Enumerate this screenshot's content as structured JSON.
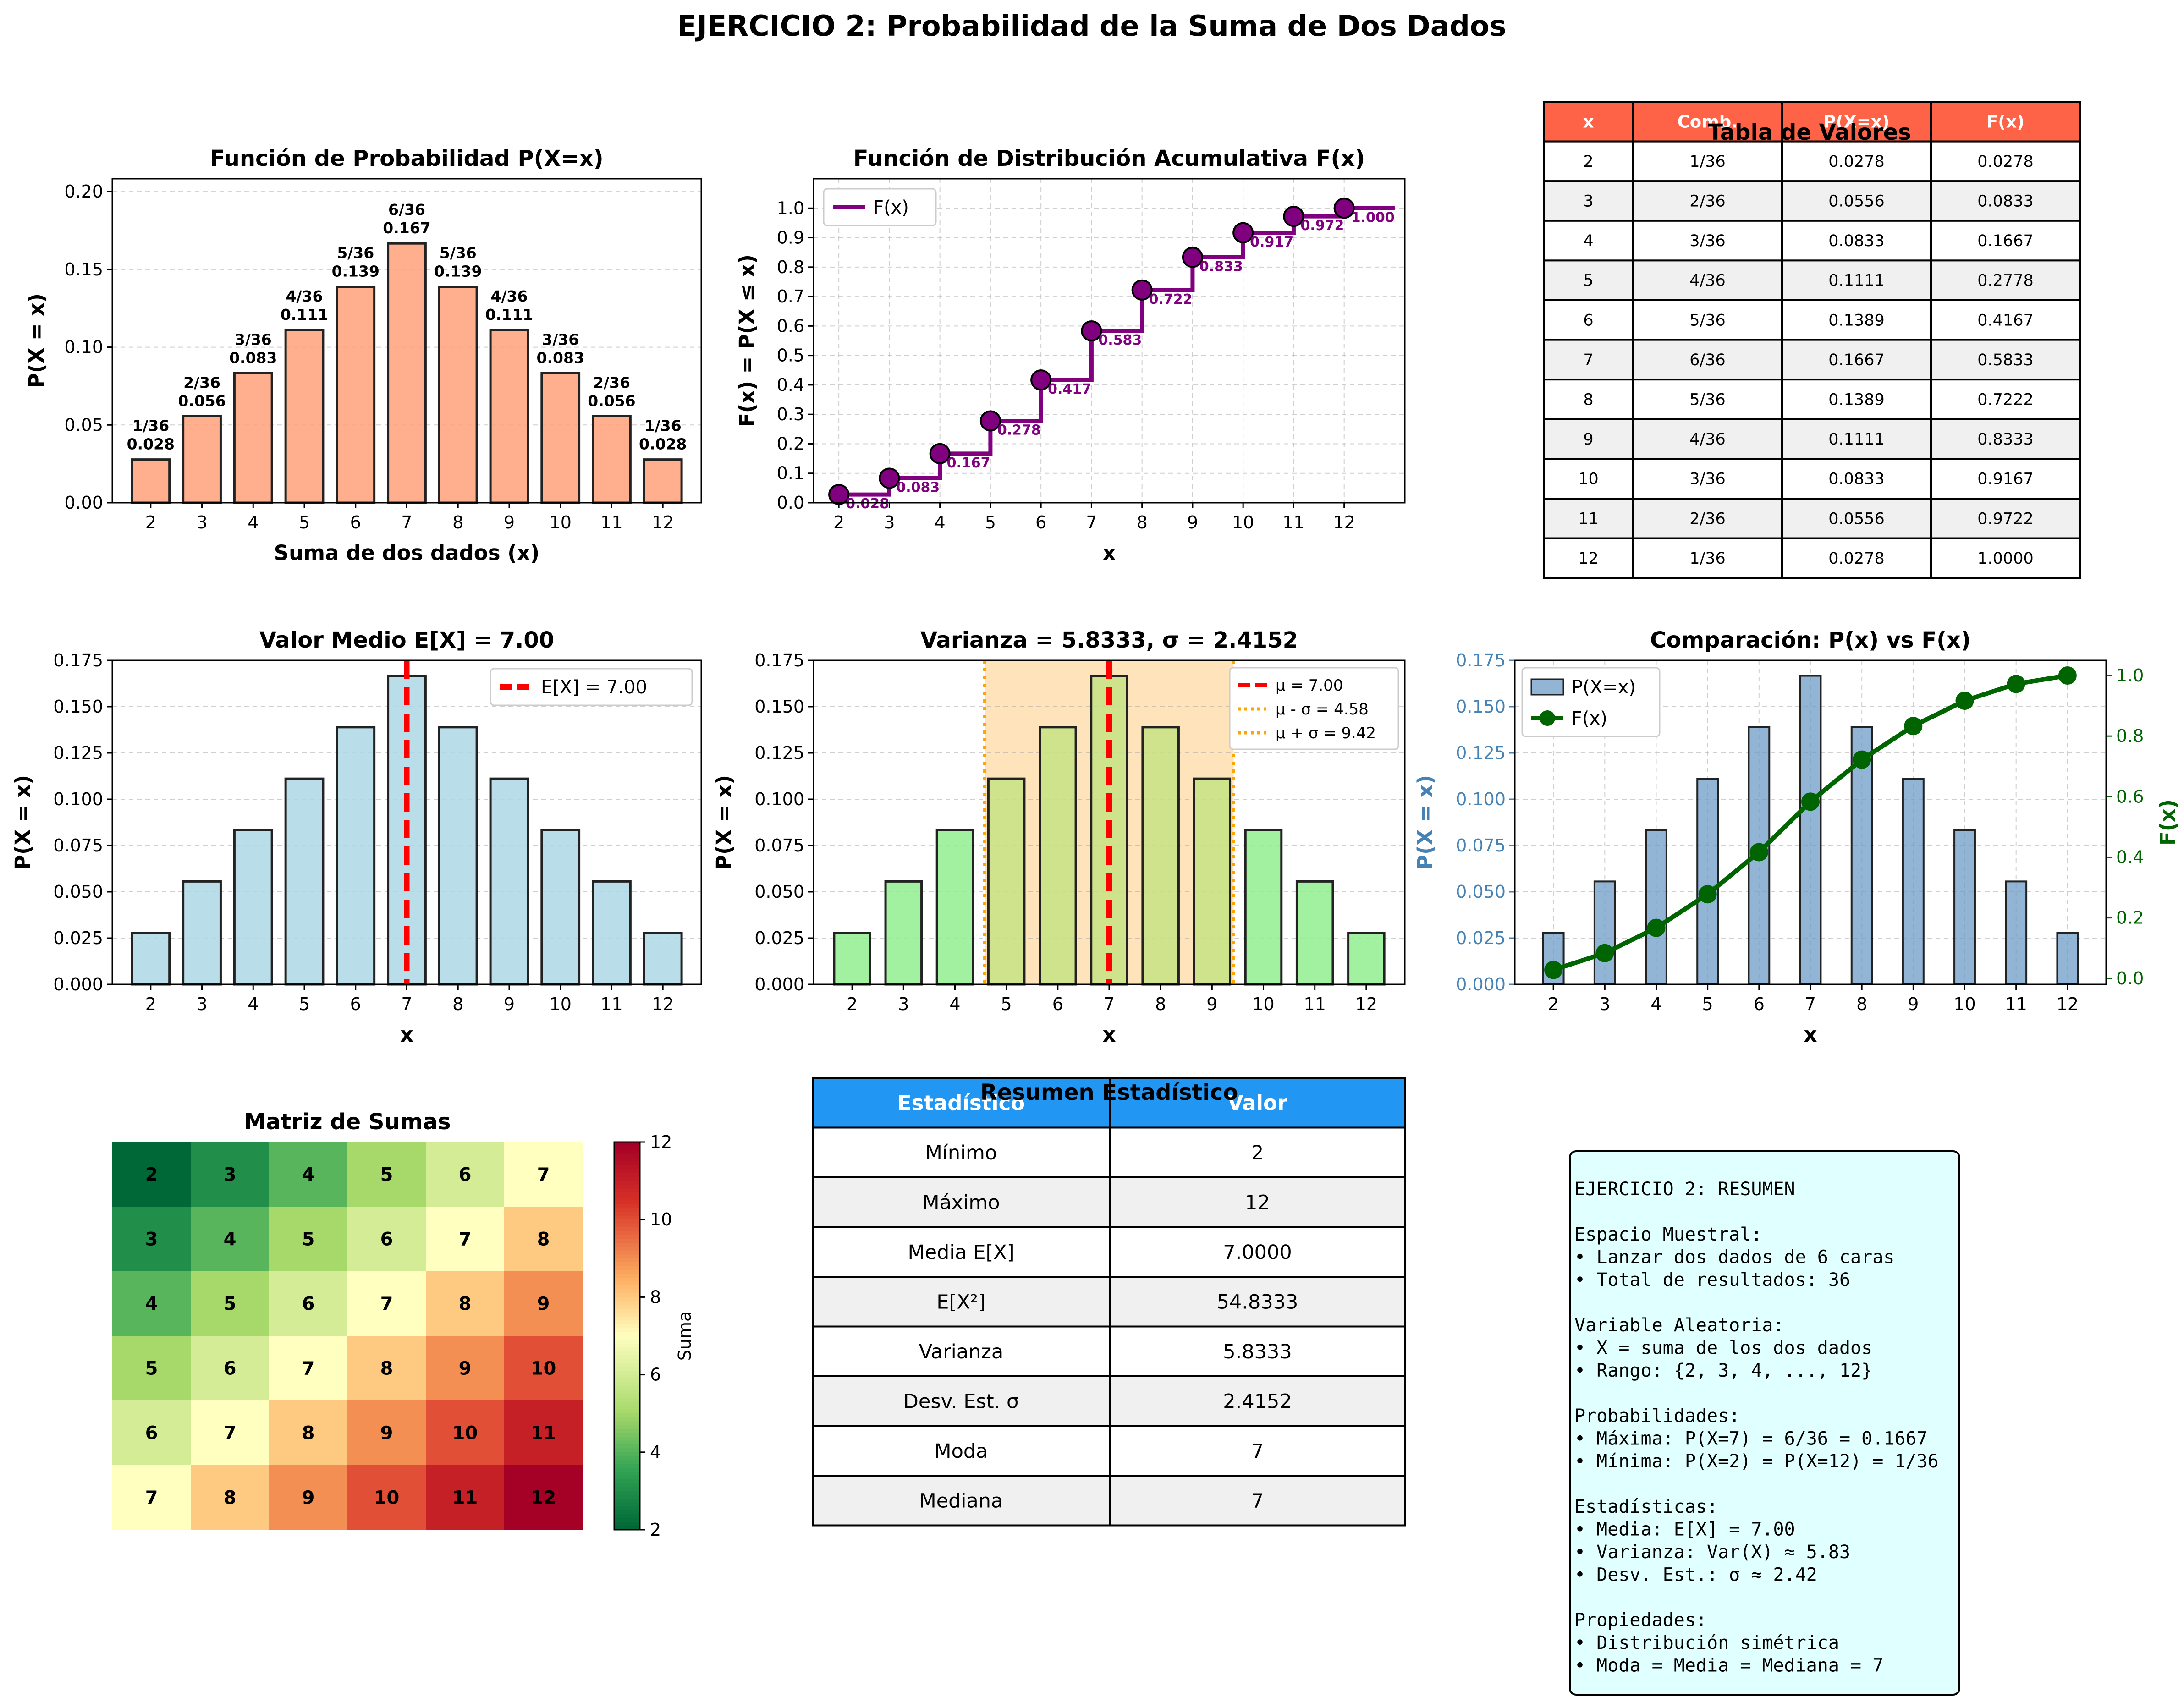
{
  "suptitle": "EJERCICIO 2: Probabilidad de la Suma de Dos Dados",
  "colors": {
    "pmf_bar": "#FFA07A",
    "cdf_line": "#800080",
    "mean_bar": "#ADD8E6",
    "var_bar": "#90EE90",
    "var_band": "#FFE0B2",
    "mean_line": "#FF0000",
    "sigma_line": "#FFA500",
    "cmp_bar": "#6E9BC7",
    "cmp_line": "#006400",
    "table_head": "#FF6347",
    "summary_head": "#2196F3",
    "text_box_bg": "#E0FFFF"
  },
  "chart_data": [
    {
      "type": "bar",
      "title": "Función de Probabilidad P(X=x)",
      "xlabel": "Suma de dos dados (x)",
      "ylabel": "P(X = x)",
      "categories": [
        "2",
        "3",
        "4",
        "5",
        "6",
        "7",
        "8",
        "9",
        "10",
        "11",
        "12"
      ],
      "values": [
        0.0278,
        0.0556,
        0.0833,
        0.1111,
        0.1389,
        0.1667,
        0.1389,
        0.1111,
        0.0833,
        0.0556,
        0.0278
      ],
      "labels_frac": [
        "1/36",
        "2/36",
        "3/36",
        "4/36",
        "5/36",
        "6/36",
        "5/36",
        "4/36",
        "3/36",
        "2/36",
        "1/36"
      ],
      "labels_dec": [
        "0.028",
        "0.056",
        "0.083",
        "0.111",
        "0.139",
        "0.167",
        "0.139",
        "0.111",
        "0.083",
        "0.056",
        "0.028"
      ],
      "ylim": [
        0,
        0.2083
      ],
      "yticks": [
        "0.00",
        "0.05",
        "0.10",
        "0.15",
        "0.20"
      ]
    },
    {
      "type": "line",
      "title": "Función de Distribución Acumulativa F(x)",
      "xlabel": "x",
      "ylabel": "F(x) = P(X ≤ x)",
      "legend": "F(x)",
      "x": [
        2,
        3,
        4,
        5,
        6,
        7,
        8,
        9,
        10,
        11,
        12
      ],
      "values": [
        0.0278,
        0.0833,
        0.1667,
        0.2778,
        0.4167,
        0.5833,
        0.7222,
        0.8333,
        0.9167,
        0.9722,
        1.0
      ],
      "point_labels": [
        "0.028",
        "0.083",
        "0.167",
        "0.278",
        "0.417",
        "0.583",
        "0.722",
        "0.833",
        "0.917",
        "0.972",
        "1.000"
      ],
      "xlim": [
        1.5,
        13.2
      ],
      "ylim": [
        0,
        1.1
      ],
      "yticks": [
        "0.0",
        "0.1",
        "0.2",
        "0.3",
        "0.4",
        "0.5",
        "0.6",
        "0.7",
        "0.8",
        "0.9",
        "1.0"
      ]
    },
    {
      "type": "table",
      "title": "Tabla de Valores",
      "columns": [
        "x",
        "Comb.",
        "P(X=x)",
        "F(x)"
      ],
      "rows": [
        [
          "2",
          "1/36",
          "0.0278",
          "0.0278"
        ],
        [
          "3",
          "2/36",
          "0.0556",
          "0.0833"
        ],
        [
          "4",
          "3/36",
          "0.0833",
          "0.1667"
        ],
        [
          "5",
          "4/36",
          "0.1111",
          "0.2778"
        ],
        [
          "6",
          "5/36",
          "0.1389",
          "0.4167"
        ],
        [
          "7",
          "6/36",
          "0.1667",
          "0.5833"
        ],
        [
          "8",
          "5/36",
          "0.1389",
          "0.7222"
        ],
        [
          "9",
          "4/36",
          "0.1111",
          "0.8333"
        ],
        [
          "10",
          "3/36",
          "0.0833",
          "0.9167"
        ],
        [
          "11",
          "2/36",
          "0.0556",
          "0.9722"
        ],
        [
          "12",
          "1/36",
          "0.0278",
          "1.0000"
        ]
      ]
    },
    {
      "type": "bar",
      "title": "Valor Medio E[X] = 7.00",
      "xlabel": "x",
      "ylabel": "P(X = x)",
      "categories": [
        "2",
        "3",
        "4",
        "5",
        "6",
        "7",
        "8",
        "9",
        "10",
        "11",
        "12"
      ],
      "values": [
        0.0278,
        0.0556,
        0.0833,
        0.1111,
        0.1389,
        0.1667,
        0.1389,
        0.1111,
        0.0833,
        0.0556,
        0.0278
      ],
      "mean": 7.0,
      "legend": "E[X] = 7.00",
      "ylim": [
        0,
        0.175
      ],
      "yticks": [
        "0.000",
        "0.025",
        "0.050",
        "0.075",
        "0.100",
        "0.125",
        "0.150",
        "0.175"
      ]
    },
    {
      "type": "bar",
      "title": "Varianza = 5.8333, σ = 2.4152",
      "xlabel": "x",
      "ylabel": "P(X = x)",
      "categories": [
        "2",
        "3",
        "4",
        "5",
        "6",
        "7",
        "8",
        "9",
        "10",
        "11",
        "12"
      ],
      "values": [
        0.0278,
        0.0556,
        0.0833,
        0.1111,
        0.1389,
        0.1667,
        0.1389,
        0.1111,
        0.0833,
        0.0556,
        0.0278
      ],
      "mean": 7.0,
      "sigma_low": 4.58,
      "sigma_high": 9.42,
      "legend": [
        "μ = 7.00",
        "μ - σ = 4.58",
        "μ + σ = 9.42"
      ],
      "ylim": [
        0,
        0.175
      ],
      "yticks": [
        "0.000",
        "0.025",
        "0.050",
        "0.075",
        "0.100",
        "0.125",
        "0.150",
        "0.175"
      ]
    },
    {
      "type": "bar",
      "title": "Comparación: P(x) vs F(x)",
      "xlabel": "x",
      "ylabel": "P(X = x)",
      "ylabel_right": "F(x)",
      "categories": [
        "2",
        "3",
        "4",
        "5",
        "6",
        "7",
        "8",
        "9",
        "10",
        "11",
        "12"
      ],
      "series": [
        {
          "name": "P(X=x)",
          "values": [
            0.0278,
            0.0556,
            0.0833,
            0.1111,
            0.1389,
            0.1667,
            0.1389,
            0.1111,
            0.0833,
            0.0556,
            0.0278
          ]
        },
        {
          "name": "F(x)",
          "values": [
            0.0278,
            0.0833,
            0.1667,
            0.2778,
            0.4167,
            0.5833,
            0.7222,
            0.8333,
            0.9167,
            0.9722,
            1.0
          ]
        }
      ],
      "ylim": [
        0,
        0.175
      ],
      "ylim_right": [
        -0.02,
        1.05
      ],
      "yticks": [
        "0.000",
        "0.025",
        "0.050",
        "0.075",
        "0.100",
        "0.125",
        "0.150",
        "0.175"
      ],
      "yticks_right": [
        "0.0",
        "0.2",
        "0.4",
        "0.6",
        "0.8",
        "1.0"
      ]
    },
    {
      "type": "heatmap",
      "title": "Matriz de Sumas",
      "colorbar_label": "Suma",
      "colorbar_ticks": [
        "2",
        "4",
        "6",
        "8",
        "10",
        "12"
      ],
      "matrix": [
        [
          2,
          3,
          4,
          5,
          6,
          7
        ],
        [
          3,
          4,
          5,
          6,
          7,
          8
        ],
        [
          4,
          5,
          6,
          7,
          8,
          9
        ],
        [
          5,
          6,
          7,
          8,
          9,
          10
        ],
        [
          6,
          7,
          8,
          9,
          10,
          11
        ],
        [
          7,
          8,
          9,
          10,
          11,
          12
        ]
      ]
    },
    {
      "type": "table",
      "title": "Resumen Estadístico",
      "columns": [
        "Estadístico",
        "Valor"
      ],
      "rows": [
        [
          "Mínimo",
          "2"
        ],
        [
          "Máximo",
          "12"
        ],
        [
          "Media E[X]",
          "7.0000"
        ],
        [
          "E[X²]",
          "54.8333"
        ],
        [
          "Varianza",
          "5.8333"
        ],
        [
          "Desv. Est. σ",
          "2.4152"
        ],
        [
          "Moda",
          "7"
        ],
        [
          "Mediana",
          "7"
        ]
      ]
    }
  ],
  "summary_box": [
    "EJERCICIO 2: RESUMEN",
    "",
    "Espacio Muestral:",
    "• Lanzar dos dados de 6 caras",
    "• Total de resultados: 36",
    "",
    "Variable Aleatoria:",
    "• X = suma de los dos dados",
    "• Rango: {2, 3, 4, ..., 12}",
    "",
    "Probabilidades:",
    "• Máxima: P(X=7) = 6/36 = 0.1667",
    "• Mínima: P(X=2) = P(X=12) = 1/36",
    "",
    "Estadísticas:",
    "• Media: E[X] = 7.00",
    "• Varianza: Var(X) ≈ 5.83",
    "• Desv. Est.: σ ≈ 2.42",
    "",
    "Propiedades:",
    "• Distribución simétrica",
    "• Moda = Media = Mediana = 7"
  ]
}
